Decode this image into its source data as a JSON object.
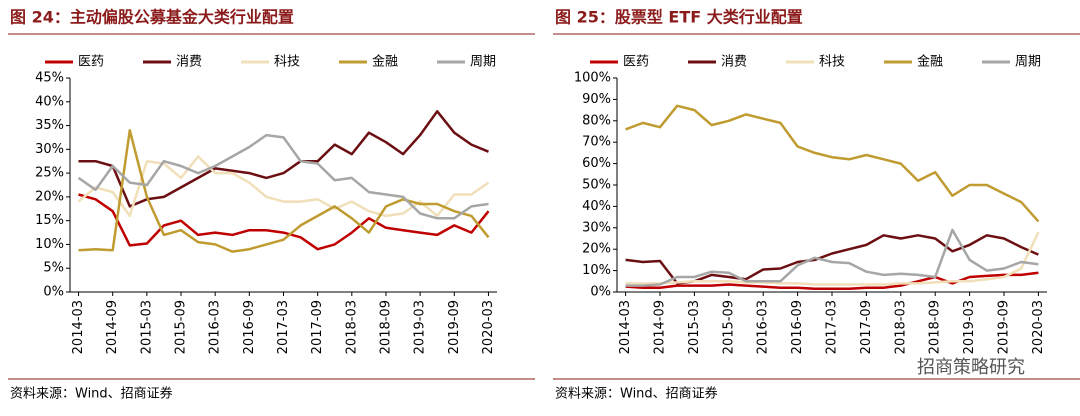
{
  "chart_data": [
    {
      "type": "line",
      "title": "图 24：主动偏股公募基金大类行业配置",
      "source": "资料来源：Wind、招商证券",
      "categories": [
        "2014-03",
        null,
        "2014-09",
        null,
        "2015-03",
        null,
        "2015-09",
        null,
        "2016-03",
        null,
        "2016-09",
        null,
        "2017-03",
        null,
        "2017-09",
        null,
        "2018-03",
        null,
        "2018-09",
        null,
        "2019-03",
        null,
        "2019-09",
        null,
        "2020-03"
      ],
      "ylim": [
        0,
        45
      ],
      "yticks": [
        {
          "value": 0,
          "label": "0%"
        },
        {
          "value": 5,
          "label": "5%"
        },
        {
          "value": 10,
          "label": "10%"
        },
        {
          "value": 15,
          "label": "15%"
        },
        {
          "value": 20,
          "label": "20%"
        },
        {
          "value": 25,
          "label": "25%"
        },
        {
          "value": 30,
          "label": "30%"
        },
        {
          "value": 35,
          "label": "35%"
        },
        {
          "value": 40,
          "label": "40%"
        },
        {
          "value": 45,
          "label": "45%"
        }
      ],
      "legend": "top",
      "series": [
        {
          "name": "医药",
          "color": "#c00000",
          "values": [
            20.5,
            19.5,
            17,
            9.8,
            10.2,
            14,
            15,
            12,
            12.5,
            12,
            13,
            13,
            12.5,
            11.5,
            9,
            10,
            12.5,
            15.5,
            13.5,
            13,
            12.5,
            12,
            14,
            12.5,
            17
          ]
        },
        {
          "name": "消费",
          "color": "#6b0f12",
          "values": [
            27.5,
            27.5,
            26.5,
            18,
            19.5,
            20,
            22,
            24,
            26,
            25.5,
            25,
            24,
            25,
            27.5,
            27.5,
            31,
            29,
            33.5,
            31.5,
            29,
            33,
            38,
            33.5,
            31,
            29.5
          ]
        },
        {
          "name": "科技",
          "color": "#f0dfb8",
          "values": [
            19,
            22,
            21,
            16,
            27.5,
            27,
            24,
            28.5,
            25,
            25,
            23,
            20,
            19,
            19,
            19.5,
            17.5,
            19,
            17,
            16,
            16.5,
            19,
            16,
            20.5,
            20.5,
            23
          ]
        },
        {
          "name": "金融",
          "color": "#bf9b30",
          "values": [
            8.8,
            9,
            8.8,
            34,
            20,
            12,
            13,
            10.5,
            10,
            8.5,
            9,
            10,
            11,
            14,
            16,
            18,
            15.5,
            12.5,
            18,
            19.5,
            18.5,
            18.5,
            17,
            16,
            11.5
          ]
        },
        {
          "name": "周期",
          "color": "#a6a6a6",
          "values": [
            24,
            21.5,
            26.5,
            23,
            22.5,
            27.5,
            26.5,
            25,
            26.5,
            28.5,
            30.5,
            33,
            32.5,
            27.5,
            27,
            23.5,
            24,
            21,
            20.5,
            20,
            16.5,
            15.5,
            15.5,
            18,
            18.5
          ]
        }
      ]
    },
    {
      "type": "line",
      "title": "图 25：股票型 ETF 大类行业配置",
      "source": "资料来源：Wind、招商证券",
      "categories": [
        "2014-03",
        null,
        "2014-09",
        null,
        "2015-03",
        null,
        "2015-09",
        null,
        "2016-03",
        null,
        "2016-09",
        null,
        "2017-03",
        null,
        "2017-09",
        null,
        "2018-03",
        null,
        "2018-09",
        null,
        "2019-03",
        null,
        "2019-09",
        null,
        "2020-03"
      ],
      "ylim": [
        0,
        100
      ],
      "yticks": [
        {
          "value": 0,
          "label": "0%"
        },
        {
          "value": 10,
          "label": "10%"
        },
        {
          "value": 20,
          "label": "20%"
        },
        {
          "value": 30,
          "label": "30%"
        },
        {
          "value": 40,
          "label": "40%"
        },
        {
          "value": 50,
          "label": "50%"
        },
        {
          "value": 60,
          "label": "60%"
        },
        {
          "value": 70,
          "label": "70%"
        },
        {
          "value": 80,
          "label": "80%"
        },
        {
          "value": 90,
          "label": "90%"
        },
        {
          "value": 100,
          "label": "100%"
        }
      ],
      "legend": "top",
      "series": [
        {
          "name": "医药",
          "color": "#c00000",
          "values": [
            2.5,
            2,
            2,
            3,
            3,
            3,
            3.5,
            3,
            2.5,
            2,
            2,
            1.5,
            1.5,
            1.5,
            2,
            2,
            3,
            5,
            7,
            4,
            7,
            7.5,
            8,
            8,
            9
          ]
        },
        {
          "name": "消费",
          "color": "#6b0f12",
          "values": [
            15,
            14,
            14.5,
            4,
            5,
            8,
            7,
            6,
            10.5,
            11,
            14,
            15,
            18,
            20,
            22,
            26.5,
            25,
            26.5,
            25,
            19,
            22,
            26.5,
            25,
            21,
            17.5
          ]
        },
        {
          "name": "科技",
          "color": "#f0dfb8",
          "values": [
            4,
            4,
            4,
            4.5,
            5,
            5,
            5,
            4.5,
            4.5,
            4,
            4,
            3.5,
            3.5,
            3.5,
            3.5,
            3.5,
            4,
            4,
            4.5,
            5,
            5,
            6,
            7,
            11,
            28
          ]
        },
        {
          "name": "金融",
          "color": "#bf9b30",
          "values": [
            76,
            79,
            77,
            87,
            85,
            78,
            80,
            83,
            81,
            79,
            68,
            65,
            63,
            62,
            64,
            62,
            60,
            52,
            56,
            45,
            50,
            50,
            46,
            42,
            33
          ]
        },
        {
          "name": "周期",
          "color": "#a6a6a6",
          "values": [
            3,
            3,
            3.5,
            7,
            7,
            9.5,
            9,
            5,
            5,
            5,
            12.5,
            16,
            14,
            13.5,
            9.5,
            8,
            8.5,
            8,
            7,
            29,
            15,
            10,
            11,
            14,
            13
          ]
        }
      ]
    }
  ],
  "watermark": "招商策略研究"
}
